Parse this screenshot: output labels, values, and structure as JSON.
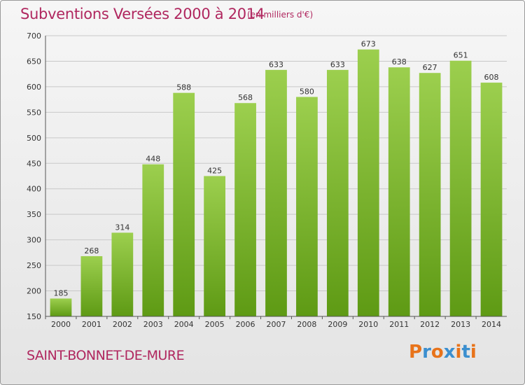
{
  "header": {
    "title": "Subventions Versées 2000 à 2014",
    "unit": "(en milliers d'€)"
  },
  "footer": {
    "town": "SAINT-BONNET-DE-MURE",
    "logo": "Proxiti"
  },
  "colors": {
    "title": "#b0275f",
    "bar_top": "#9ccf4e",
    "bar_bottom": "#5e9a14",
    "grid": "#c9c9c9",
    "logo_letters": [
      "#e8731a",
      "#3b8fcf",
      "#e8731a",
      "#3b8fcf",
      "#e8731a",
      "#3b8fcf",
      "#e8731a"
    ]
  },
  "chart_data": {
    "type": "bar",
    "title": "Subventions Versées 2000 à 2014",
    "subtitle": "(en milliers d'€)",
    "categories": [
      "2000",
      "2001",
      "2002",
      "2003",
      "2004",
      "2005",
      "2006",
      "2007",
      "2008",
      "2009",
      "2010",
      "2011",
      "2012",
      "2013",
      "2014"
    ],
    "values": [
      185,
      268,
      314,
      448,
      588,
      425,
      568,
      633,
      580,
      633,
      673,
      638,
      627,
      651,
      608
    ],
    "ylim": [
      150,
      700
    ],
    "yticks": [
      150,
      200,
      250,
      300,
      350,
      400,
      450,
      500,
      550,
      600,
      650,
      700
    ],
    "grid": true,
    "data_labels": true
  }
}
